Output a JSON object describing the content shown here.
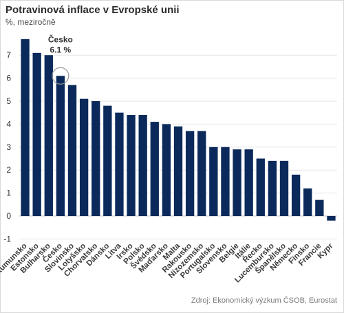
{
  "title": "Potravinová inflace v Evropské unii",
  "subtitle": "%, meziročně",
  "source": "Zdroj: Ekonomický výzkum ČSOB, Eurostat",
  "colors": {
    "bar": "#0b2a5b",
    "grid": "#e6e6e6",
    "annotation_circle": "#9a9a9a"
  },
  "chart_data": {
    "type": "bar",
    "categories": [
      "Rumunsko",
      "Estonsko",
      "Bulharsko",
      "Česko",
      "Slovinsko",
      "Lotyšsko",
      "Chorvatsko",
      "Dánsko",
      "Litva",
      "Irsko",
      "Polsko",
      "Švédsko",
      "Maďarsko",
      "Malta",
      "Rakousko",
      "Nizozemsko",
      "Portugalsko",
      "Slovensko",
      "Belgie",
      "Itálie",
      "Řecko",
      "Lucembursko",
      "Španělsko",
      "Německo",
      "Finsko",
      "Francie",
      "Kypr"
    ],
    "values": [
      7.7,
      7.1,
      7.0,
      6.1,
      5.7,
      5.1,
      5.0,
      4.8,
      4.5,
      4.4,
      4.4,
      4.1,
      4.0,
      3.9,
      3.7,
      3.7,
      3.0,
      3.0,
      2.9,
      2.9,
      2.5,
      2.4,
      2.4,
      1.8,
      1.2,
      0.7,
      -0.2
    ],
    "yticks": [
      -1,
      0,
      1,
      2,
      3,
      4,
      5,
      6,
      7
    ],
    "ylim": [
      -1,
      8
    ],
    "grid": true,
    "annotation": {
      "category": "Česko",
      "label_line1": "Česko",
      "label_line2": "6.1 %"
    }
  }
}
